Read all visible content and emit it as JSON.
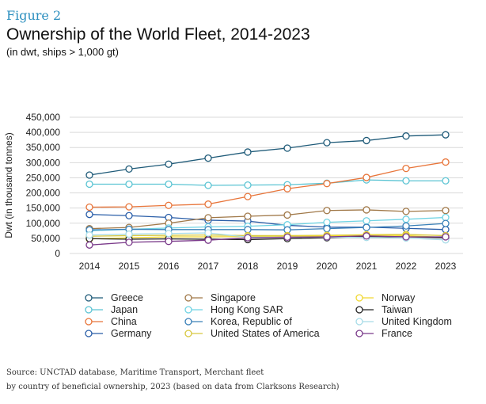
{
  "header": {
    "figure_label": "Figure 2",
    "title": "Ownership of the World Fleet, 2014-2023",
    "subtitle": "(in dwt, ships > 1,000 gt)"
  },
  "source": {
    "line1": "Source: UNCTAD database, Maritime Transport, Merchant fleet",
    "line2": "by country of beneficial ownership, 2023 (based on data from Clarksons Research)"
  },
  "chart_data": {
    "type": "line",
    "ylabel": "Dwt (in thousand tonnes)",
    "xlabel": "",
    "ylim": [
      0,
      450000
    ],
    "ytick_labels": [
      "0",
      "50,000",
      "100,000",
      "150,000",
      "200,000",
      "250,000",
      "300,000",
      "350,000",
      "400,000",
      "450,000"
    ],
    "yticks": [
      0,
      50000,
      100000,
      150000,
      200000,
      250000,
      300000,
      350000,
      400000,
      450000
    ],
    "categories": [
      "2014",
      "2015",
      "2016",
      "2017",
      "2018",
      "2019",
      "2020",
      "2021",
      "2022",
      "2023"
    ],
    "grid": "horizontal",
    "legend_placement": "bottom",
    "series": [
      {
        "name": "Greece",
        "color": "#1e5a78",
        "values": [
          259000,
          279000,
          295000,
          315000,
          335000,
          348000,
          366000,
          373000,
          388000,
          392000
        ]
      },
      {
        "name": "Japan",
        "color": "#5bc4d3",
        "values": [
          229000,
          229000,
          229000,
          225000,
          226000,
          227000,
          232000,
          243000,
          240000,
          240000
        ]
      },
      {
        "name": "China",
        "color": "#e8753a",
        "values": [
          153000,
          154000,
          159000,
          163000,
          188000,
          214000,
          231000,
          251000,
          281000,
          302000
        ]
      },
      {
        "name": "Germany",
        "color": "#2a5ea8",
        "values": [
          129000,
          125000,
          119000,
          110000,
          107000,
          93000,
          87000,
          87000,
          83000,
          79000
        ]
      },
      {
        "name": "Singapore",
        "color": "#a07848",
        "values": [
          82000,
          86000,
          100000,
          118000,
          123000,
          127000,
          142000,
          144000,
          139000,
          142000
        ]
      },
      {
        "name": "Hong Kong SAR",
        "color": "#6fd3e3",
        "values": [
          75000,
          80000,
          84000,
          88000,
          90000,
          95000,
          103000,
          108000,
          113000,
          119000
        ]
      },
      {
        "name": "Korea, Republic of",
        "color": "#3a80b8",
        "values": [
          78000,
          80000,
          79000,
          79000,
          79000,
          78000,
          82000,
          86000,
          91000,
          99000
        ]
      },
      {
        "name": "United States of America",
        "color": "#d8c840",
        "values": [
          57000,
          59000,
          60000,
          61000,
          59000,
          59000,
          60000,
          62000,
          63000,
          59000
        ]
      },
      {
        "name": "Norway",
        "color": "#f0d830",
        "values": [
          48000,
          52000,
          55000,
          55000,
          56000,
          57000,
          58000,
          61000,
          59000,
          53000
        ]
      },
      {
        "name": "Taiwan",
        "color": "#222222",
        "values": [
          49000,
          47000,
          48000,
          47000,
          46000,
          49000,
          52000,
          56000,
          55000,
          52000
        ]
      },
      {
        "name": "United Kingdom",
        "color": "#a8dce8",
        "values": [
          61000,
          64000,
          66000,
          68000,
          54000,
          54000,
          54000,
          53000,
          51000,
          45000
        ]
      },
      {
        "name": "France",
        "color": "#7a3a8a",
        "values": [
          28000,
          37000,
          40000,
          44000,
          52000,
          54000,
          55000,
          58000,
          55000,
          55000
        ]
      }
    ]
  }
}
